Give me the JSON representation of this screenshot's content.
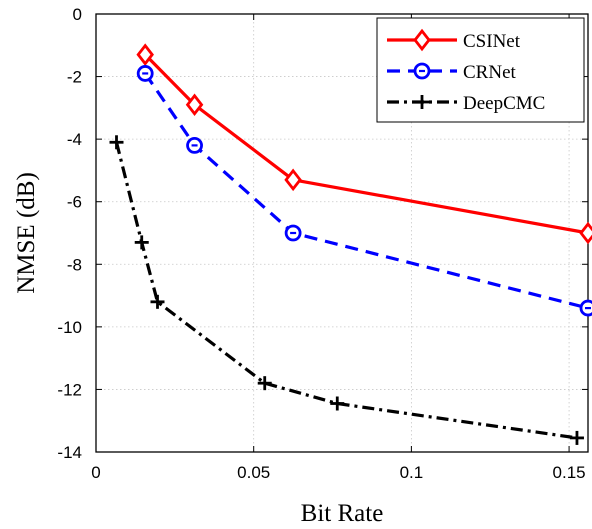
{
  "chart_data": {
    "type": "line",
    "xlabel": "Bit Rate",
    "ylabel": "NMSE (dB)",
    "xlim": [
      0,
      0.156
    ],
    "ylim": [
      -14,
      0
    ],
    "xticks": [
      0,
      0.05,
      0.1,
      0.15
    ],
    "xtick_labels": [
      "0",
      "0.05",
      "0.1",
      "0.15"
    ],
    "yticks": [
      0,
      -2,
      -4,
      -6,
      -8,
      -10,
      -12,
      -14
    ],
    "ytick_labels": [
      "0",
      "-2",
      "-4",
      "-6",
      "-8",
      "-10",
      "-12",
      "-14"
    ],
    "grid": true,
    "legend_position": "top-right",
    "series": [
      {
        "name": "CSINet",
        "color": "#ff0000",
        "line_style": "solid",
        "marker": "diamond",
        "x": [
          0.0156,
          0.03125,
          0.0625,
          0.156
        ],
        "y": [
          -1.3,
          -2.9,
          -5.3,
          -7.0
        ]
      },
      {
        "name": "CRNet",
        "color": "#0000ff",
        "line_style": "dashed",
        "marker": "circle",
        "x": [
          0.0156,
          0.03125,
          0.0625,
          0.156
        ],
        "y": [
          -1.9,
          -4.2,
          -7.0,
          -9.4
        ]
      },
      {
        "name": "DeepCMC",
        "color": "#000000",
        "line_style": "dashdot",
        "marker": "plus",
        "x": [
          0.0065,
          0.0145,
          0.0195,
          0.0535,
          0.0765,
          0.1525
        ],
        "y": [
          -4.1,
          -7.3,
          -9.2,
          -11.8,
          -12.45,
          -13.55
        ]
      }
    ]
  }
}
